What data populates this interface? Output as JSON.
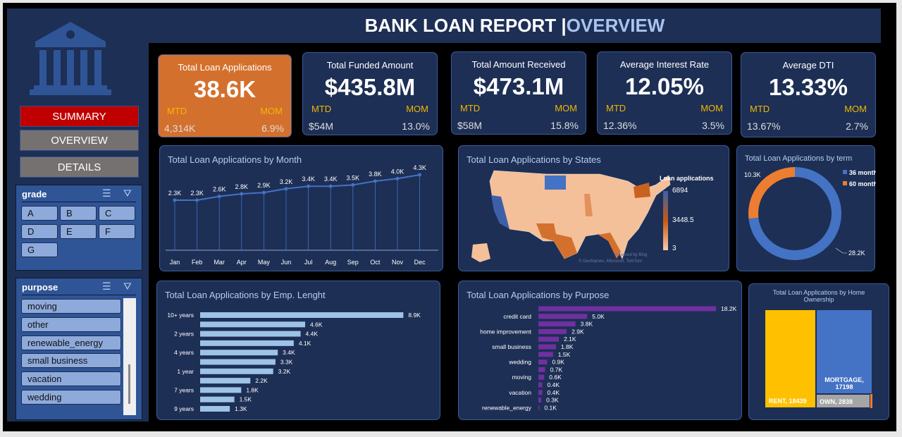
{
  "header": {
    "title": "BANK LOAN REPORT |",
    "subtitle": "OVERVIEW"
  },
  "nav": {
    "summary": "SUMMARY",
    "overview": "OVERVIEW",
    "details": "DETAILS"
  },
  "colors": {
    "panel": "#1d2f55",
    "accent_orange": "#d4702d",
    "summary_red": "#c00000",
    "nav_grey": "#767171",
    "mtd_gold": "#f2b600"
  },
  "kpis": [
    {
      "title": "Total Loan Applications",
      "value": "38.6K",
      "mtd_label": "MTD",
      "mom_label": "MOM",
      "mtd": "4,314K",
      "mom": "6.9%"
    },
    {
      "title": "Total Funded Amount",
      "value": "$435.8M",
      "mtd_label": "MTD",
      "mom_label": "MOM",
      "mtd": "$54M",
      "mom": "13.0%"
    },
    {
      "title": "Total Amount Received",
      "value": "$473.1M",
      "mtd_label": "MTD",
      "mom_label": "MOM",
      "mtd": "$58M",
      "mom": "15.8%"
    },
    {
      "title": "Average Interest Rate",
      "value": "12.05%",
      "mtd_label": "MTD",
      "mom_label": "MOM",
      "mtd": "12.36%",
      "mom": "3.5%"
    },
    {
      "title": "Average DTI",
      "value": "13.33%",
      "mtd_label": "MTD",
      "mom_label": "MOM",
      "mtd": "13.67%",
      "mom": "2.7%"
    }
  ],
  "slicers": {
    "grade": {
      "title": "grade",
      "items": [
        "A",
        "B",
        "C",
        "D",
        "E",
        "F",
        "G"
      ]
    },
    "purpose": {
      "title": "purpose",
      "items": [
        "moving",
        "other",
        "renewable_energy",
        "small business",
        "vacation",
        "wedding"
      ]
    }
  },
  "chart_data": [
    {
      "type": "line",
      "title": "Total Loan Applications by Month",
      "categories": [
        "Jan",
        "Feb",
        "Mar",
        "Apr",
        "May",
        "Jun",
        "Jul",
        "Aug",
        "Sep",
        "Oct",
        "Nov",
        "Dec"
      ],
      "values": [
        2.3,
        2.3,
        2.6,
        2.8,
        2.9,
        3.2,
        3.4,
        3.4,
        3.5,
        3.8,
        4.0,
        4.3
      ],
      "labels": [
        "2.3K",
        "2.3K",
        "2.6K",
        "2.8K",
        "2.9K",
        "3.2K",
        "3.4K",
        "3.4K",
        "3.5K",
        "3.8K",
        "4.0K",
        "4.3K"
      ],
      "color": "#4472c4"
    },
    {
      "type": "map",
      "title": "Total Loan Applications by States",
      "legend_title": "Loan applications",
      "legend_ticks": [
        "6894",
        "3448.5",
        "3"
      ],
      "attribution": [
        "Powered by Bing",
        "© GeoNames, Microsoft, TomTom"
      ]
    },
    {
      "type": "pie",
      "title": "Total Loan Applications by term",
      "series": [
        {
          "name": "36 months",
          "value": 28.2,
          "label": "28.2K",
          "color": "#4472c4"
        },
        {
          "name": "60 months",
          "value": 10.3,
          "label": "10.3K",
          "color": "#ed7d31"
        }
      ],
      "legend": "top-right"
    },
    {
      "type": "bar",
      "title": "Total Loan Applications by Emp. Lenght",
      "categories": [
        "10+ years",
        "",
        "2 years",
        "",
        "4 years",
        "",
        "1 year",
        "",
        "7 years",
        "",
        "9 years"
      ],
      "values": [
        8.9,
        4.6,
        4.4,
        4.1,
        3.4,
        3.3,
        3.2,
        2.2,
        1.8,
        1.5,
        1.3
      ],
      "labels": [
        "8.9K",
        "4.6K",
        "4.4K",
        "4.1K",
        "3.4K",
        "3.3K",
        "3.2K",
        "2.2K",
        "1.8K",
        "1.5K",
        "1.3K"
      ],
      "color": "#9dc3e6"
    },
    {
      "type": "bar",
      "title": "Total Loan Applications by Purpose",
      "categories": [
        "",
        "credit card",
        "",
        "home improvement",
        "",
        "small business",
        "",
        "wedding",
        "",
        "moving",
        "",
        "vacation",
        "",
        "renewable_energy"
      ],
      "values": [
        18.2,
        5.0,
        3.8,
        2.9,
        2.1,
        1.8,
        1.5,
        0.9,
        0.7,
        0.6,
        0.4,
        0.4,
        0.3,
        0.1
      ],
      "labels": [
        "18.2K",
        "5.0K",
        "3.8K",
        "2.9K",
        "2.1K",
        "1.8K",
        "1.5K",
        "0.9K",
        "0.7K",
        "0.6K",
        "0.4K",
        "0.4K",
        "0.3K",
        "0.1K"
      ],
      "color": "#7030a0"
    },
    {
      "type": "treemap",
      "title": "Total Loan Applications by Home Ownership",
      "items": [
        {
          "name": "RENT",
          "value": 18439,
          "label": "RENT, 18439",
          "color": "#ffc000"
        },
        {
          "name": "MORTGAGE",
          "value": 17198,
          "label": "MORTGAGE, 17198",
          "color": "#4472c4"
        },
        {
          "name": "OWN",
          "value": 2838,
          "label": "OWN, 2838",
          "color": "#a5a5a5"
        }
      ]
    }
  ]
}
